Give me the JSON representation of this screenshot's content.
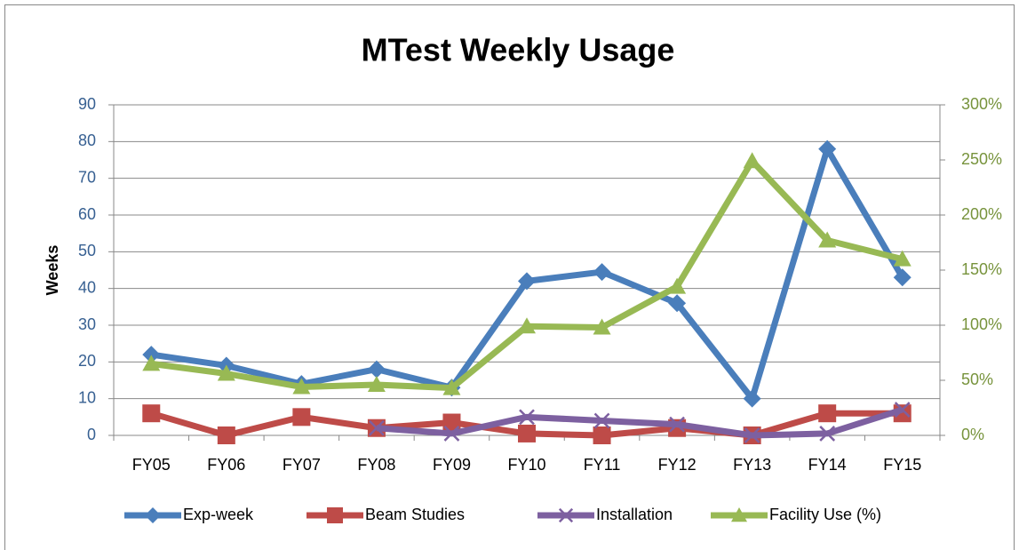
{
  "chart_data": {
    "type": "line",
    "title": "MTest Weekly Usage",
    "ylabel": "Weeks",
    "categories": [
      "FY05",
      "FY06",
      "FY07",
      "FY08",
      "FY09",
      "FY10",
      "FY11",
      "FY12",
      "FY13",
      "FY14",
      "FY15"
    ],
    "series": [
      {
        "name": "Exp-week",
        "color": "#4a7ebb",
        "marker": "diamond",
        "values": [
          22,
          19,
          14,
          18,
          13,
          42,
          44.5,
          36,
          10,
          78,
          43
        ]
      },
      {
        "name": "Beam Studies",
        "color": "#be4b48",
        "marker": "square",
        "values": [
          6,
          0,
          5,
          2,
          3.5,
          0.5,
          0,
          2,
          0,
          6,
          6
        ]
      },
      {
        "name": "Installation",
        "color": "#7d60a0",
        "marker": "x",
        "values": [
          null,
          null,
          null,
          2,
          0.5,
          5,
          4,
          3,
          0,
          0.5,
          7
        ]
      },
      {
        "name": "Facility Use (%)",
        "color": "#98b954",
        "marker": "triangle",
        "axis": "y2",
        "values": [
          65,
          56,
          44,
          46,
          43,
          99,
          98,
          135,
          249,
          177,
          160
        ]
      }
    ],
    "ylim": [
      0,
      90
    ],
    "yticks": [
      0,
      10,
      20,
      30,
      40,
      50,
      60,
      70,
      80,
      90
    ],
    "ycolor": "#376092",
    "y2lim": [
      0,
      300
    ],
    "y2ticks": [
      {
        "value": 0,
        "label": "0%"
      },
      {
        "value": 50,
        "label": "50%"
      },
      {
        "value": 100,
        "label": "100%"
      },
      {
        "value": 150,
        "label": "150%"
      },
      {
        "value": 200,
        "label": "200%"
      },
      {
        "value": 250,
        "label": "250%"
      },
      {
        "value": 300,
        "label": "300%"
      }
    ],
    "y2color": "#77933c",
    "grid": true,
    "legend": "bottom"
  }
}
